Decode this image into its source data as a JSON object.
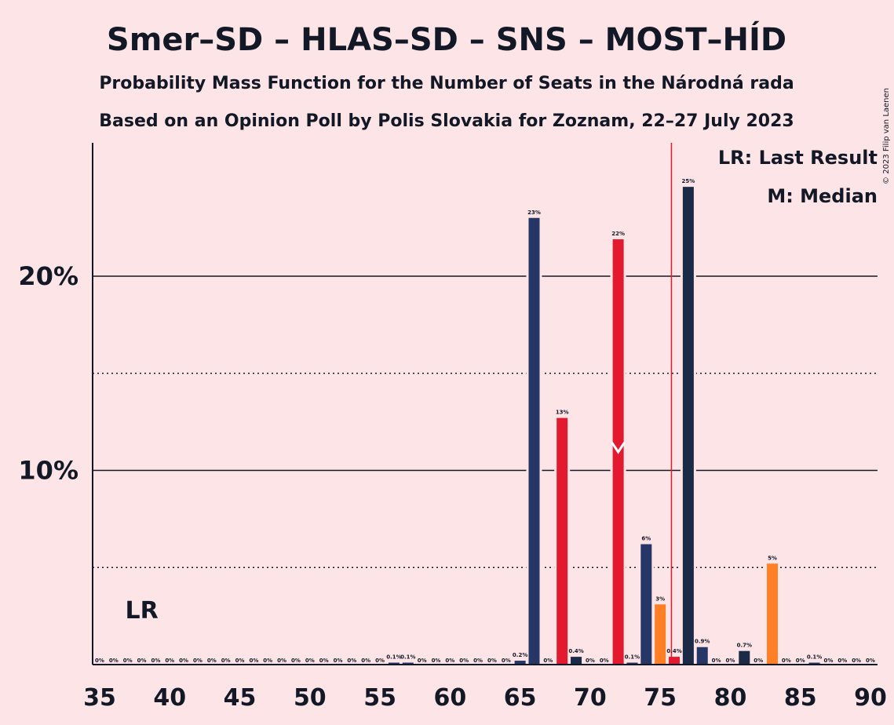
{
  "chart_data": {
    "type": "bar",
    "title": "Smer–SD – HLAS–SD – SNS – MOST–HÍD",
    "subtitle1": "Probability Mass Function for the Number of Seats in the Národná rada",
    "subtitle2": "Based on an Opinion Poll by Polis Slovakia for Zoznam, 22–27 July 2023",
    "copyright": "© 2023 Filip van Laenen",
    "legend": {
      "lr": "LR: Last Result",
      "median": "M: Median"
    },
    "lr_label": "LR",
    "lr_seat": 38,
    "median_seat": 72,
    "majority_seat": 75.8,
    "xlim": [
      35,
      90
    ],
    "ylim": [
      0,
      26.8
    ],
    "xticks": [
      35,
      40,
      45,
      50,
      55,
      60,
      65,
      70,
      75,
      80,
      85,
      90
    ],
    "yticks_solid": [
      {
        "value": 10,
        "label": "10%"
      },
      {
        "value": 20,
        "label": "20%"
      }
    ],
    "yticks_dotted": [
      5,
      15
    ],
    "colors": {
      "navy": "#253667",
      "red": "#E31A2F",
      "dark": "#1B2A47",
      "orange": "#FF7F27",
      "majority_line": "#E31A2F",
      "background": "#FDE4E6"
    },
    "bars": [
      {
        "seat": 35,
        "value": 0,
        "label": "0%",
        "color": "navy"
      },
      {
        "seat": 36,
        "value": 0,
        "label": "0%",
        "color": "navy"
      },
      {
        "seat": 37,
        "value": 0,
        "label": "0%",
        "color": "navy"
      },
      {
        "seat": 38,
        "value": 0,
        "label": "0%",
        "color": "navy"
      },
      {
        "seat": 39,
        "value": 0,
        "label": "0%",
        "color": "navy"
      },
      {
        "seat": 40,
        "value": 0,
        "label": "0%",
        "color": "navy"
      },
      {
        "seat": 41,
        "value": 0,
        "label": "0%",
        "color": "navy"
      },
      {
        "seat": 42,
        "value": 0,
        "label": "0%",
        "color": "navy"
      },
      {
        "seat": 43,
        "value": 0,
        "label": "0%",
        "color": "navy"
      },
      {
        "seat": 44,
        "value": 0,
        "label": "0%",
        "color": "navy"
      },
      {
        "seat": 45,
        "value": 0,
        "label": "0%",
        "color": "navy"
      },
      {
        "seat": 46,
        "value": 0,
        "label": "0%",
        "color": "navy"
      },
      {
        "seat": 47,
        "value": 0,
        "label": "0%",
        "color": "navy"
      },
      {
        "seat": 48,
        "value": 0,
        "label": "0%",
        "color": "navy"
      },
      {
        "seat": 49,
        "value": 0,
        "label": "0%",
        "color": "navy"
      },
      {
        "seat": 50,
        "value": 0,
        "label": "0%",
        "color": "navy"
      },
      {
        "seat": 51,
        "value": 0,
        "label": "0%",
        "color": "navy"
      },
      {
        "seat": 52,
        "value": 0,
        "label": "0%",
        "color": "navy"
      },
      {
        "seat": 53,
        "value": 0,
        "label": "0%",
        "color": "navy"
      },
      {
        "seat": 54,
        "value": 0,
        "label": "0%",
        "color": "navy"
      },
      {
        "seat": 55,
        "value": 0,
        "label": "0%",
        "color": "navy"
      },
      {
        "seat": 56,
        "value": 0.1,
        "label": "0.1%",
        "color": "navy"
      },
      {
        "seat": 57,
        "value": 0.1,
        "label": "0.1%",
        "color": "navy"
      },
      {
        "seat": 58,
        "value": 0,
        "label": "0%",
        "color": "navy"
      },
      {
        "seat": 59,
        "value": 0,
        "label": "0%",
        "color": "navy"
      },
      {
        "seat": 60,
        "value": 0,
        "label": "0%",
        "color": "navy"
      },
      {
        "seat": 61,
        "value": 0,
        "label": "0%",
        "color": "navy"
      },
      {
        "seat": 62,
        "value": 0,
        "label": "0%",
        "color": "navy"
      },
      {
        "seat": 63,
        "value": 0,
        "label": "0%",
        "color": "navy"
      },
      {
        "seat": 64,
        "value": 0,
        "label": "0%",
        "color": "navy"
      },
      {
        "seat": 65,
        "value": 0.2,
        "label": "0.2%",
        "color": "navy"
      },
      {
        "seat": 66,
        "value": 23,
        "label": "23%",
        "color": "navy"
      },
      {
        "seat": 67,
        "value": 0,
        "label": "0%",
        "color": "navy"
      },
      {
        "seat": 68,
        "value": 12.7,
        "label": "13%",
        "color": "red"
      },
      {
        "seat": 69,
        "value": 0.4,
        "label": "0.4%",
        "color": "dark"
      },
      {
        "seat": 70,
        "value": 0,
        "label": "0%",
        "color": "navy"
      },
      {
        "seat": 71,
        "value": 0,
        "label": "0%",
        "color": "navy"
      },
      {
        "seat": 72,
        "value": 21.9,
        "label": "22%",
        "color": "red"
      },
      {
        "seat": 73,
        "value": 0.1,
        "label": "0.1%",
        "color": "navy"
      },
      {
        "seat": 74,
        "value": 6.2,
        "label": "6%",
        "color": "navy"
      },
      {
        "seat": 75,
        "value": 3.1,
        "label": "3%",
        "color": "orange"
      },
      {
        "seat": 76,
        "value": 0.4,
        "label": "0.4%",
        "color": "red"
      },
      {
        "seat": 77,
        "value": 24.6,
        "label": "25%",
        "color": "dark"
      },
      {
        "seat": 78,
        "value": 0.9,
        "label": "0.9%",
        "color": "navy"
      },
      {
        "seat": 79,
        "value": 0,
        "label": "0%",
        "color": "navy"
      },
      {
        "seat": 80,
        "value": 0,
        "label": "0%",
        "color": "navy"
      },
      {
        "seat": 81,
        "value": 0.7,
        "label": "0.7%",
        "color": "dark"
      },
      {
        "seat": 82,
        "value": 0,
        "label": "0%",
        "color": "navy"
      },
      {
        "seat": 83,
        "value": 5.2,
        "label": "5%",
        "color": "orange"
      },
      {
        "seat": 84,
        "value": 0,
        "label": "0%",
        "color": "navy"
      },
      {
        "seat": 85,
        "value": 0,
        "label": "0%",
        "color": "navy"
      },
      {
        "seat": 86,
        "value": 0.1,
        "label": "0.1%",
        "color": "navy"
      },
      {
        "seat": 87,
        "value": 0,
        "label": "0%",
        "color": "navy"
      },
      {
        "seat": 88,
        "value": 0,
        "label": "0%",
        "color": "navy"
      },
      {
        "seat": 89,
        "value": 0,
        "label": "0%",
        "color": "navy"
      },
      {
        "seat": 90,
        "value": 0,
        "label": "0%",
        "color": "navy"
      }
    ]
  }
}
